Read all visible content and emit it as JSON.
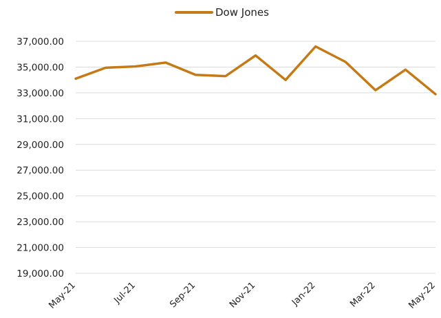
{
  "chart_data": {
    "type": "line",
    "legend": {
      "position": "top-center",
      "entries": [
        "Dow Jones"
      ]
    },
    "series": [
      {
        "name": "Dow Jones",
        "color": "#c47a17",
        "x": [
          "May-21",
          "Jun-21",
          "Jul-21",
          "Aug-21",
          "Sep-21",
          "Oct-21",
          "Nov-21",
          "Dec-21",
          "Jan-22",
          "Feb-22",
          "Mar-22",
          "Apr-22",
          "May-22"
        ],
        "values": [
          34100,
          34950,
          35050,
          35350,
          34400,
          34300,
          35900,
          34000,
          36600,
          35400,
          33200,
          34800,
          32900
        ]
      }
    ],
    "x_tick_labels": [
      "May-21",
      "Jul-21",
      "Sep-21",
      "Nov-21",
      "Jan-22",
      "Mar-22",
      "May-22"
    ],
    "y_tick_labels": [
      "19,000.00",
      "21,000.00",
      "23,000.00",
      "25,000.00",
      "27,000.00",
      "29,000.00",
      "31,000.00",
      "33,000.00",
      "35,000.00",
      "37,000.00"
    ],
    "ylim": [
      19000,
      37000
    ],
    "grid": true,
    "title": "",
    "xlabel": "",
    "ylabel": ""
  }
}
